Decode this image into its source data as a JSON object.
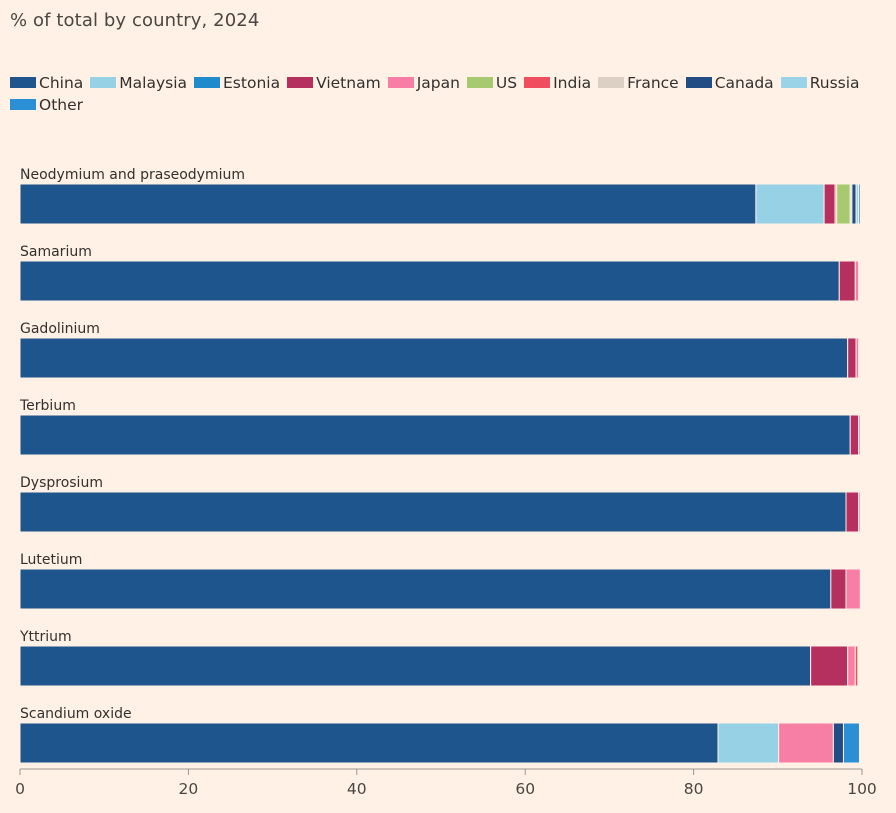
{
  "chart_data": {
    "type": "bar",
    "orientation": "horizontal",
    "stacked": true,
    "title": "",
    "subtitle": "% of total by country, 2024",
    "xlabel": "",
    "ylabel": "",
    "xlim": [
      0,
      100
    ],
    "x_ticks": [
      0,
      20,
      40,
      60,
      80,
      100
    ],
    "categories": [
      "Neodymium and praseodymium",
      "Samarium",
      "Gadolinium",
      "Terbium",
      "Dysprosium",
      "Lutetium",
      "Yttrium",
      "Scandium oxide"
    ],
    "series": [
      {
        "name": "China",
        "color": "#1e558c",
        "values": [
          87.4,
          97.3,
          98.3,
          98.6,
          98.1,
          96.3,
          93.9,
          82.9
        ]
      },
      {
        "name": "Malaysia",
        "color": "#96d1e5",
        "values": [
          8.1,
          0,
          0,
          0,
          0,
          0,
          0,
          7.2
        ]
      },
      {
        "name": "Estonia",
        "color": "#1f8bcb",
        "values": [
          0,
          0,
          0,
          0,
          0,
          0,
          0,
          0
        ]
      },
      {
        "name": "Vietnam",
        "color": "#b5305f",
        "values": [
          1.3,
          1.9,
          1.0,
          1.0,
          1.5,
          1.8,
          4.4,
          0
        ]
      },
      {
        "name": "Japan",
        "color": "#f77fa6",
        "values": [
          0.2,
          0.4,
          0.3,
          0.2,
          0.2,
          1.7,
          0.9,
          6.5
        ]
      },
      {
        "name": "US",
        "color": "#a7c96f",
        "values": [
          1.6,
          0,
          0,
          0,
          0,
          0,
          0,
          0
        ]
      },
      {
        "name": "India",
        "color": "#f04e5e",
        "values": [
          0,
          0,
          0,
          0,
          0,
          0,
          0.3,
          0
        ]
      },
      {
        "name": "France",
        "color": "#dccfc4",
        "values": [
          0.2,
          0,
          0,
          0,
          0,
          0,
          0,
          0
        ]
      },
      {
        "name": "Canada",
        "color": "#214c84",
        "values": [
          0.5,
          0,
          0,
          0,
          0,
          0,
          0,
          1.2
        ]
      },
      {
        "name": "Russia",
        "color": "#9ad3e8",
        "values": [
          0.3,
          0,
          0,
          0,
          0,
          0,
          0,
          0
        ]
      },
      {
        "name": "Other",
        "color": "#2b8fd6",
        "values": [
          0.2,
          0,
          0,
          0,
          0,
          0,
          0,
          1.9
        ]
      }
    ]
  }
}
